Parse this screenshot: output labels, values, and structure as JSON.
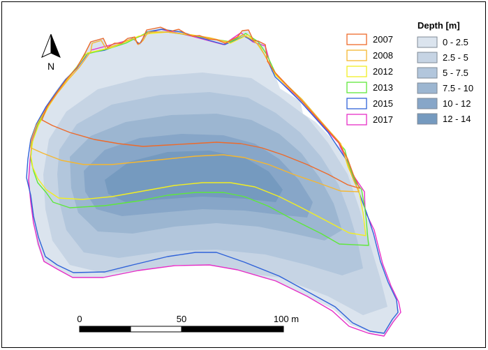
{
  "north_arrow": {
    "label": "N"
  },
  "shoreline_legend": {
    "items": [
      {
        "year": "2007",
        "color": "#ed6a2a"
      },
      {
        "year": "2008",
        "color": "#f5b731"
      },
      {
        "year": "2012",
        "color": "#f2ee22"
      },
      {
        "year": "2013",
        "color": "#5fe83a"
      },
      {
        "year": "2015",
        "color": "#2f62d8"
      },
      {
        "year": "2017",
        "color": "#e62ec6"
      }
    ]
  },
  "depth_legend": {
    "title": "Depth [m]",
    "classes": [
      {
        "label": "0 - 2.5",
        "color": "#dbe4ee"
      },
      {
        "label": "2.5 - 5",
        "color": "#c6d4e4"
      },
      {
        "label": "5 - 7.5",
        "color": "#b2c6dc"
      },
      {
        "label": "7.5 - 10",
        "color": "#9cb6d1"
      },
      {
        "label": "10 - 12",
        "color": "#87a6c8"
      },
      {
        "label": "12 - 14",
        "color": "#759abf"
      }
    ]
  },
  "scale_bar": {
    "labels": [
      "0",
      "50",
      "100 m"
    ]
  }
}
